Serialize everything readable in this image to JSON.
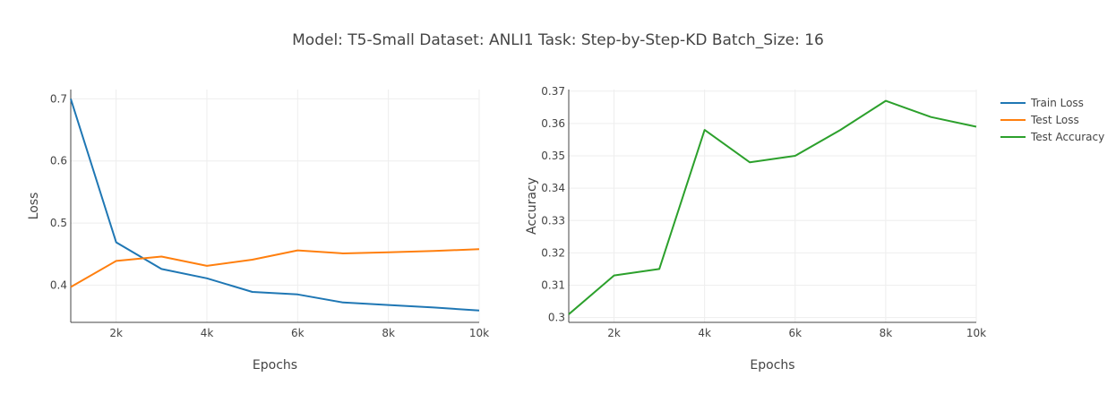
{
  "title": "Model: T5-Small Dataset: ANLI1 Task: Step-by-Step-KD Batch_Size: 16",
  "colors": {
    "train_loss": "#1f77b4",
    "test_loss": "#ff7f0e",
    "test_accuracy": "#2ca02c"
  },
  "legend": {
    "position": "top-right",
    "items": [
      {
        "label": "Train Loss",
        "color": "#1f77b4"
      },
      {
        "label": "Test Loss",
        "color": "#ff7f0e"
      },
      {
        "label": "Test Accuracy",
        "color": "#2ca02c"
      }
    ]
  },
  "chart_data": [
    {
      "type": "line",
      "xlabel": "Epochs",
      "ylabel": "Loss",
      "xlim": [
        1000,
        10000
      ],
      "ylim": [
        0.34,
        0.715
      ],
      "xticks": [
        2000,
        4000,
        6000,
        8000,
        10000
      ],
      "xtick_labels": [
        "2k",
        "4k",
        "6k",
        "8k",
        "10k"
      ],
      "yticks": [
        0.4,
        0.5,
        0.6,
        0.7
      ],
      "ytick_labels": [
        "0.4",
        "0.5",
        "0.6",
        "0.7"
      ],
      "grid": true,
      "x": [
        1000,
        2000,
        3000,
        4000,
        5000,
        6000,
        7000,
        8000,
        9000,
        10000
      ],
      "series": [
        {
          "name": "Train Loss",
          "color": "#1f77b4",
          "values": [
            0.7,
            0.469,
            0.426,
            0.411,
            0.389,
            0.385,
            0.372,
            0.368,
            0.364,
            0.359
          ]
        },
        {
          "name": "Test Loss",
          "color": "#ff7f0e",
          "values": [
            0.397,
            0.439,
            0.446,
            0.431,
            0.441,
            0.456,
            0.451,
            0.453,
            0.455,
            0.458
          ]
        }
      ]
    },
    {
      "type": "line",
      "xlabel": "Epochs",
      "ylabel": "Accuracy",
      "xlim": [
        1000,
        10000
      ],
      "ylim": [
        0.2985,
        0.3705
      ],
      "xticks": [
        2000,
        4000,
        6000,
        8000,
        10000
      ],
      "xtick_labels": [
        "2k",
        "4k",
        "6k",
        "8k",
        "10k"
      ],
      "yticks": [
        0.3,
        0.31,
        0.32,
        0.33,
        0.34,
        0.35,
        0.36,
        0.37
      ],
      "ytick_labels": [
        "0.3",
        "0.31",
        "0.32",
        "0.33",
        "0.34",
        "0.35",
        "0.36",
        "0.37"
      ],
      "grid": true,
      "x": [
        1000,
        2000,
        3000,
        4000,
        5000,
        6000,
        7000,
        8000,
        9000,
        10000
      ],
      "series": [
        {
          "name": "Test Accuracy",
          "color": "#2ca02c",
          "values": [
            0.301,
            0.313,
            0.315,
            0.358,
            0.348,
            0.35,
            0.358,
            0.367,
            0.362,
            0.359
          ]
        }
      ]
    }
  ]
}
